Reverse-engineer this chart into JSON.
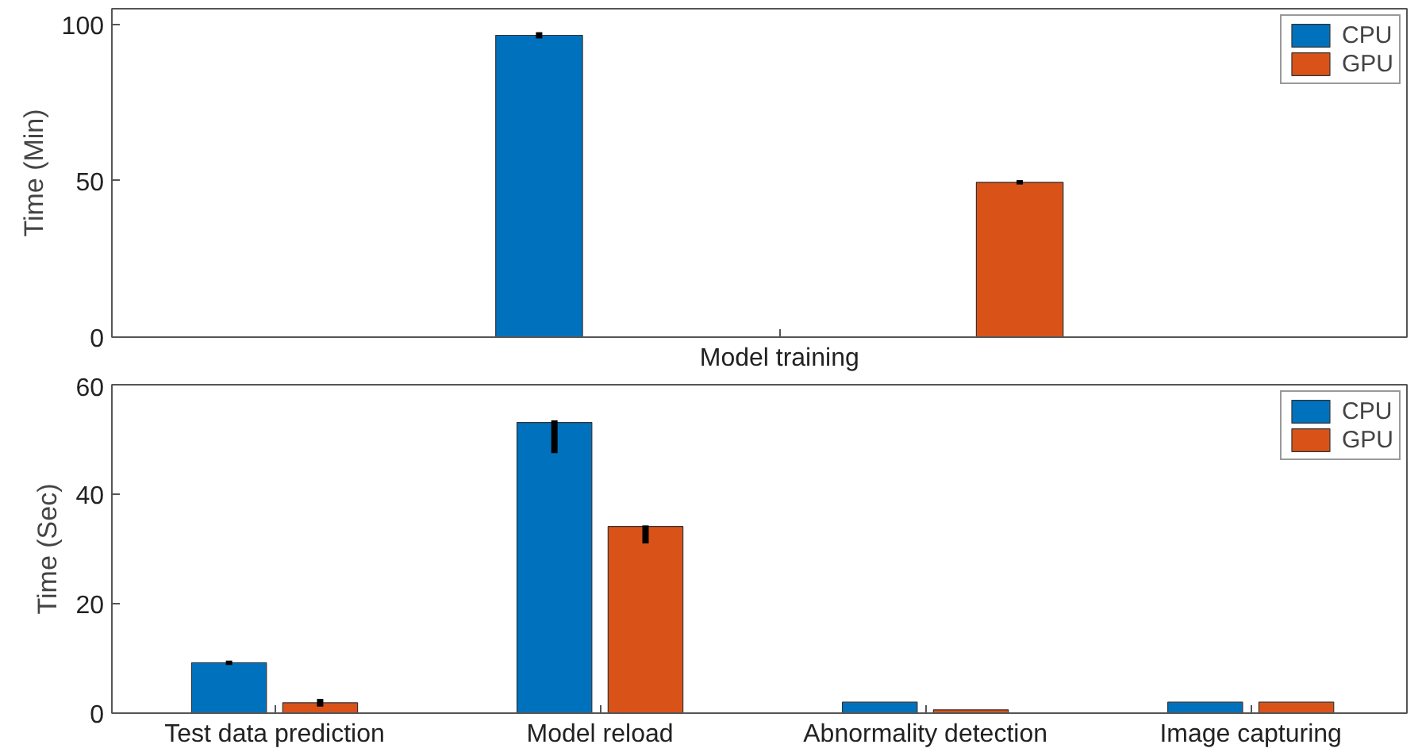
{
  "chart_data": [
    {
      "type": "bar",
      "ylabel": "Time (Min)",
      "categories": [
        "Model training"
      ],
      "ylim": [
        0,
        105
      ],
      "yticks": [
        0,
        50,
        100
      ],
      "grid": false,
      "legend": "top right",
      "series": [
        {
          "name": "CPU",
          "color": "#0072bd",
          "values": [
            96.5
          ],
          "errors": [
            [
              95.5,
              97.5
            ]
          ]
        },
        {
          "name": "GPU",
          "color": "#d95319",
          "values": [
            49.5
          ],
          "errors": [
            [
              48.8,
              50.2
            ]
          ]
        }
      ]
    },
    {
      "type": "bar",
      "ylabel": "Time (Sec)",
      "categories": [
        "Test data prediction",
        "Model reload",
        "Abnormality detection",
        "Image capturing"
      ],
      "ylim": [
        0,
        60
      ],
      "yticks": [
        0,
        20,
        40,
        60
      ],
      "grid": false,
      "legend": "top right",
      "series": [
        {
          "name": "CPU",
          "color": "#0072bd",
          "values": [
            9.2,
            53.1,
            2.0,
            2.0
          ],
          "errors": [
            [
              8.8,
              9.6
            ],
            [
              47.5,
              53.5
            ],
            null,
            null
          ]
        },
        {
          "name": "GPU",
          "color": "#d95319",
          "values": [
            1.9,
            34.1,
            0.6,
            2.0
          ],
          "errors": [
            [
              1.2,
              2.6
            ],
            [
              31.0,
              34.3
            ],
            null,
            null
          ]
        }
      ]
    }
  ]
}
